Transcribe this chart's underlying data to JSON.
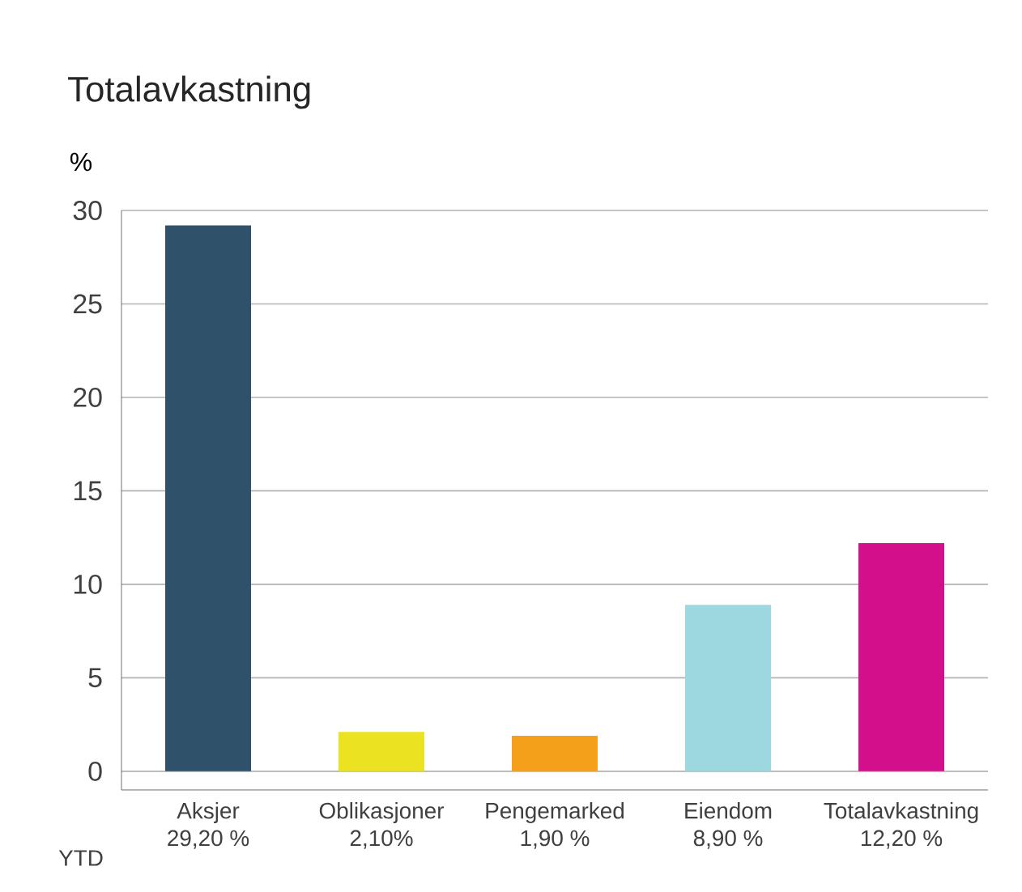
{
  "chart_data": {
    "type": "bar",
    "title": "Totalavkastning",
    "ylabel": "%",
    "categories": [
      "Aksjer",
      "Oblikasjoner",
      "Pengemarked",
      "Eiendom",
      "Totalavkastning"
    ],
    "values": [
      29.2,
      2.1,
      1.9,
      8.9,
      12.2
    ],
    "colors": [
      "#2f5169",
      "#ebe221",
      "#f5a01a",
      "#9dd8e0",
      "#d40f8c"
    ],
    "value_labels": [
      "29,20 %",
      "2,10%",
      "1,90 %",
      "8,90 %",
      "12,20 %"
    ],
    "annotations": [
      "YTD"
    ],
    "ylim": [
      -1,
      30
    ],
    "yticks": [
      0,
      5,
      10,
      15,
      20,
      25,
      30
    ],
    "grid": "y"
  }
}
